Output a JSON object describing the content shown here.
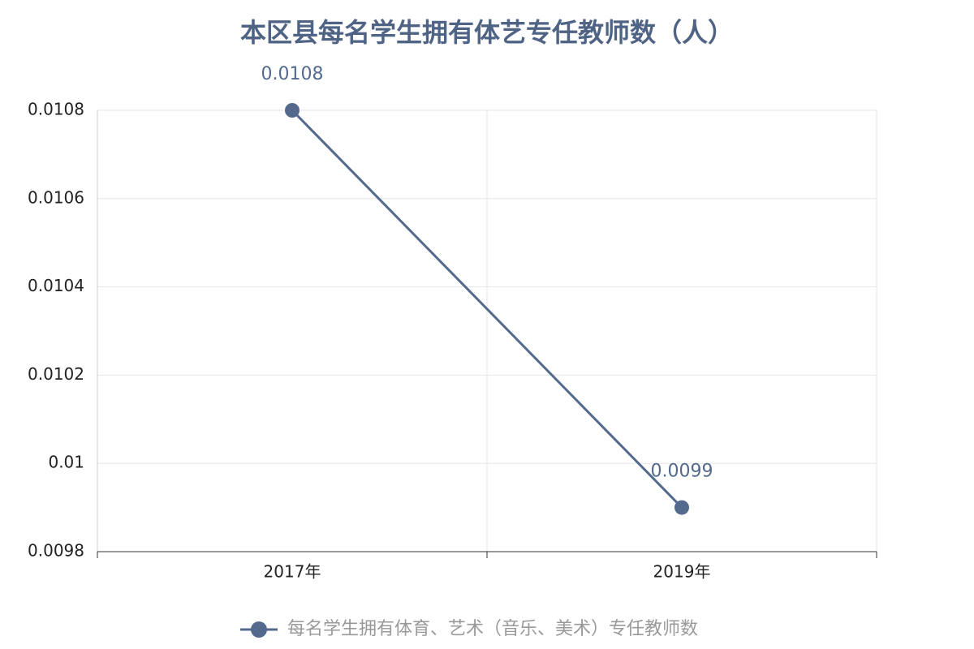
{
  "chart_data": {
    "type": "line",
    "title": "本区县每名学生拥有体艺专任教师数（人）",
    "categories": [
      "2017年",
      "2019年"
    ],
    "series": [
      {
        "name": "每名学生拥有体育、艺术（音乐、美术）专任教师数",
        "color": "#536a8d",
        "values": [
          0.0108,
          0.0099
        ]
      }
    ],
    "ylim": [
      0.0098,
      0.0108
    ],
    "yticks": [
      0.0098,
      0.01,
      0.0102,
      0.0104,
      0.0106,
      0.0108
    ],
    "grid": true
  }
}
